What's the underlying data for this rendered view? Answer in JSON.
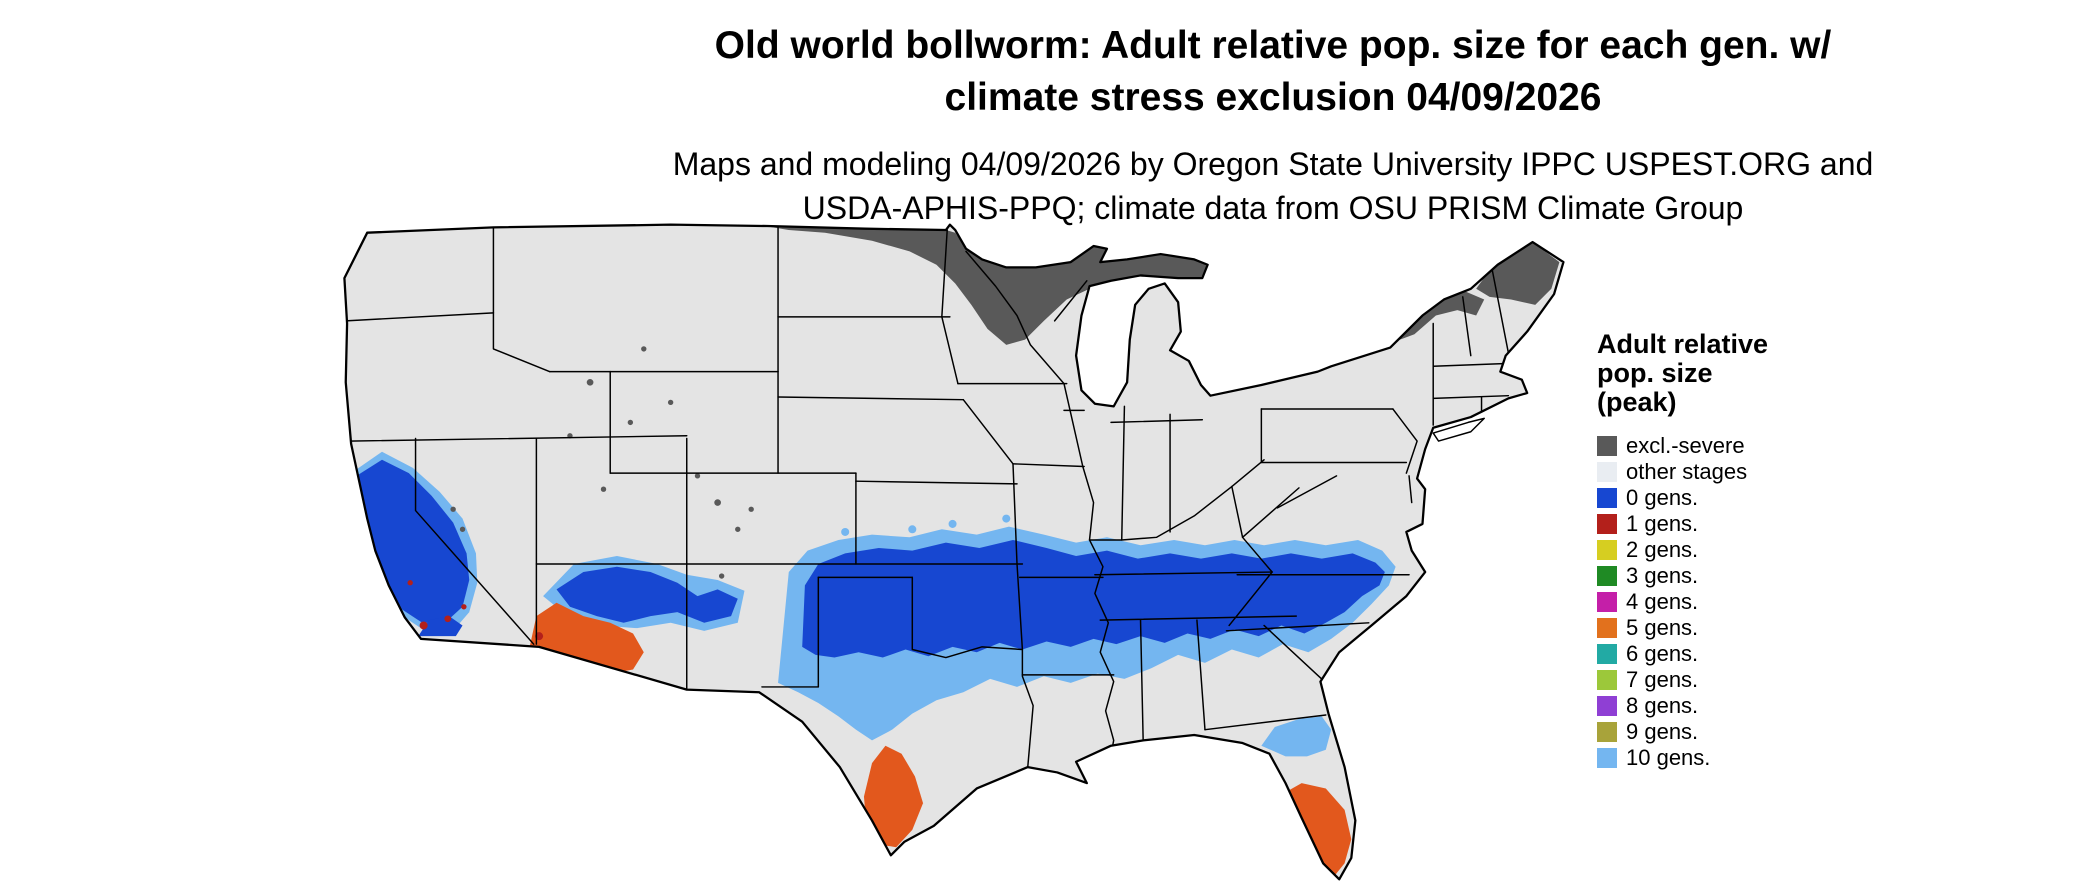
{
  "title": {
    "line1": "Old world bollworm: Adult relative pop. size for each gen. w/",
    "line2": "climate stress exclusion 04/09/2026"
  },
  "subtitle": {
    "line1": "Maps and modeling 04/09/2026 by Oregon State University IPPC USPEST.ORG and",
    "line2": "USDA-APHIS-PPQ; climate data from OSU PRISM Climate Group"
  },
  "legend": {
    "title_lines": [
      "Adult relative",
      "pop. size",
      "(peak)"
    ],
    "items": [
      {
        "label": "excl.-severe",
        "color": "#595959"
      },
      {
        "label": "other stages",
        "color": "#e9edf2"
      },
      {
        "label": "0 gens.",
        "color": "#1747d1"
      },
      {
        "label": "1 gens.",
        "color": "#b3201b"
      },
      {
        "label": "2 gens.",
        "color": "#d6ce21"
      },
      {
        "label": "3 gens.",
        "color": "#1f8a24"
      },
      {
        "label": "4 gens.",
        "color": "#c41fa8"
      },
      {
        "label": "5 gens.",
        "color": "#e2711d"
      },
      {
        "label": "6 gens.",
        "color": "#22aaa4"
      },
      {
        "label": "7 gens.",
        "color": "#9cc83a"
      },
      {
        "label": "8 gens.",
        "color": "#8f3fd4"
      },
      {
        "label": "9 gens.",
        "color": "#a8a33a"
      },
      {
        "label": "10 gens.",
        "color": "#74b6f0"
      }
    ]
  },
  "map": {
    "background_color": "#ffffff",
    "base_land_color": "#e4e4e4",
    "state_border_color": "#000000",
    "region_fill_colors": {
      "excluded_severe": "#595959",
      "gens_0_blue": "#1747d1",
      "gens_10_light_blue": "#74b6f0",
      "hotspot_orange": "#e2581d",
      "speck_dark_red": "#b3201b"
    },
    "regions_note": "dark gray exclusion across northern MN/ND/WI/MI-UP and northern New England; blue band across southern states and California; light blue fringe to its south; orange hotspots in south Texas, south Florida and southwest Arizona"
  }
}
